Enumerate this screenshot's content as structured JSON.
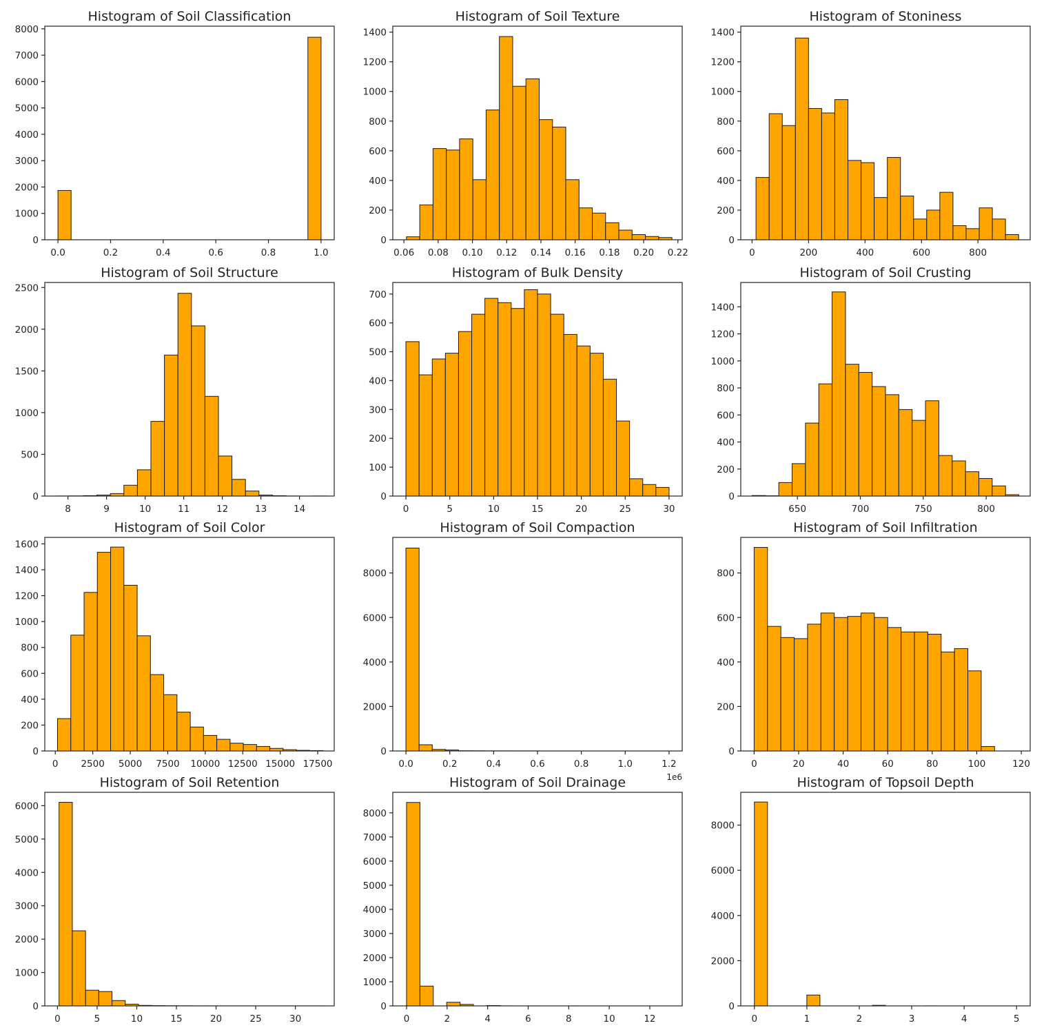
{
  "style": {
    "bar_color": "#FFA500",
    "edge_color": "#1a1a1a",
    "axis_color": "#222222"
  },
  "chart_data": [
    {
      "type": "bar",
      "title": "Histogram of Soil Classification",
      "xlabel": "",
      "ylabel": "",
      "xlim": [
        -0.05,
        1.05
      ],
      "ylim": [
        0,
        8100
      ],
      "xticks": [
        0.0,
        0.2,
        0.4,
        0.6,
        0.8,
        1.0
      ],
      "xtick_labels": [
        "0.0",
        "0.2",
        "0.4",
        "0.6",
        "0.8",
        "1.0"
      ],
      "yticks": [
        0,
        1000,
        2000,
        3000,
        4000,
        5000,
        6000,
        7000,
        8000
      ],
      "ytick_labels": [
        "0",
        "1000",
        "2000",
        "3000",
        "4000",
        "5000",
        "6000",
        "7000",
        "8000"
      ],
      "bins": {
        "start": 0,
        "width": 0.05
      },
      "counts": [
        1870,
        0,
        0,
        0,
        0,
        0,
        0,
        0,
        0,
        0,
        0,
        0,
        0,
        0,
        0,
        0,
        0,
        0,
        0,
        7680
      ]
    },
    {
      "type": "bar",
      "title": "Histogram of Soil Texture",
      "xlabel": "",
      "ylabel": "",
      "xlim": [
        0.0535,
        0.2225
      ],
      "ylim": [
        0,
        1440
      ],
      "xticks": [
        0.06,
        0.08,
        0.1,
        0.12,
        0.14,
        0.16,
        0.18,
        0.2,
        0.22
      ],
      "xtick_labels": [
        "0.06",
        "0.08",
        "0.10",
        "0.12",
        "0.14",
        "0.16",
        "0.18",
        "0.20",
        "0.22"
      ],
      "yticks": [
        0,
        200,
        400,
        600,
        800,
        1000,
        1200,
        1400
      ],
      "ytick_labels": [
        "0",
        "200",
        "400",
        "600",
        "800",
        "1000",
        "1200",
        "1400"
      ],
      "bins": {
        "start": 0.0615,
        "width": 0.00775
      },
      "counts": [
        20,
        235,
        615,
        605,
        680,
        405,
        875,
        1370,
        1035,
        1085,
        810,
        760,
        405,
        215,
        180,
        115,
        65,
        35,
        22,
        15
      ]
    },
    {
      "type": "bar",
      "title": "Histogram of Stoniness",
      "xlabel": "",
      "ylabel": "",
      "xlim": [
        -40,
        985
      ],
      "ylim": [
        0,
        1440
      ],
      "xticks": [
        0,
        200,
        400,
        600,
        800
      ],
      "xtick_labels": [
        "0",
        "200",
        "400",
        "600",
        "800"
      ],
      "yticks": [
        0,
        200,
        400,
        600,
        800,
        1000,
        1200,
        1400
      ],
      "ytick_labels": [
        "0",
        "200",
        "400",
        "600",
        "800",
        "1000",
        "1200",
        "1400"
      ],
      "bins": {
        "start": 14,
        "width": 46.5
      },
      "counts": [
        420,
        850,
        770,
        1360,
        885,
        855,
        945,
        535,
        520,
        285,
        555,
        295,
        140,
        200,
        320,
        95,
        75,
        215,
        140,
        35
      ]
    },
    {
      "type": "bar",
      "title": "Histogram of Soil Structure",
      "xlabel": "",
      "ylabel": "",
      "xlim": [
        7.4,
        14.9
      ],
      "ylim": [
        0,
        2560
      ],
      "xticks": [
        8,
        9,
        10,
        11,
        12,
        13,
        14
      ],
      "xtick_labels": [
        "8",
        "9",
        "10",
        "11",
        "12",
        "13",
        "14"
      ],
      "yticks": [
        0,
        500,
        1000,
        1500,
        2000,
        2500
      ],
      "ytick_labels": [
        "0",
        "500",
        "1000",
        "1500",
        "2000",
        "2500"
      ],
      "bins": {
        "start": 7.7,
        "width": 0.35
      },
      "counts": [
        1,
        2,
        5,
        12,
        30,
        130,
        315,
        895,
        1690,
        2430,
        2040,
        1195,
        480,
        200,
        60,
        12,
        4,
        1,
        0,
        1
      ]
    },
    {
      "type": "bar",
      "title": "Histogram of Bulk Density",
      "xlabel": "",
      "ylabel": "",
      "xlim": [
        -1.5,
        31.5
      ],
      "ylim": [
        0,
        740
      ],
      "xticks": [
        0,
        5,
        10,
        15,
        20,
        25,
        30
      ],
      "xtick_labels": [
        "0",
        "5",
        "10",
        "15",
        "20",
        "25",
        "30"
      ],
      "yticks": [
        0,
        100,
        200,
        300,
        400,
        500,
        600,
        700
      ],
      "ytick_labels": [
        "0",
        "100",
        "200",
        "300",
        "400",
        "500",
        "600",
        "700"
      ],
      "bins": {
        "start": 0,
        "width": 1.5
      },
      "counts": [
        535,
        420,
        475,
        495,
        570,
        630,
        685,
        670,
        650,
        715,
        700,
        630,
        560,
        520,
        495,
        405,
        260,
        60,
        40,
        30
      ]
    },
    {
      "type": "bar",
      "title": "Histogram of Soil Crusting",
      "xlabel": "",
      "ylabel": "",
      "xlim": [
        605,
        835
      ],
      "ylim": [
        0,
        1580
      ],
      "xticks": [
        650,
        700,
        750,
        800
      ],
      "xtick_labels": [
        "650",
        "700",
        "750",
        "800"
      ],
      "yticks": [
        0,
        200,
        400,
        600,
        800,
        1000,
        1200,
        1400
      ],
      "ytick_labels": [
        "0",
        "200",
        "400",
        "600",
        "800",
        "1000",
        "1200",
        "1400"
      ],
      "bins": {
        "start": 614,
        "width": 10.6
      },
      "counts": [
        4,
        2,
        100,
        240,
        540,
        830,
        1510,
        975,
        915,
        810,
        750,
        640,
        560,
        705,
        300,
        260,
        180,
        130,
        75,
        10
      ]
    },
    {
      "type": "bar",
      "title": "Histogram of Soil Color",
      "xlabel": "",
      "ylabel": "",
      "xlim": [
        -700,
        18600
      ],
      "ylim": [
        0,
        1650
      ],
      "xticks": [
        0,
        2500,
        5000,
        7500,
        10000,
        12500,
        15000,
        17500
      ],
      "xtick_labels": [
        "0",
        "2500",
        "5000",
        "7500",
        "10000",
        "12500",
        "15000",
        "17500"
      ],
      "yticks": [
        0,
        200,
        400,
        600,
        800,
        1000,
        1200,
        1400,
        1600
      ],
      "ytick_labels": [
        "0",
        "200",
        "400",
        "600",
        "800",
        "1000",
        "1200",
        "1400",
        "1600"
      ],
      "bins": {
        "start": 150,
        "width": 885
      },
      "counts": [
        250,
        895,
        1225,
        1535,
        1575,
        1280,
        890,
        590,
        435,
        300,
        185,
        120,
        90,
        60,
        50,
        35,
        20,
        10,
        5,
        3
      ]
    },
    {
      "type": "bar",
      "title": "Histogram of Soil Compaction",
      "xlabel": "",
      "ylabel": "",
      "x_offset_label": "1e6",
      "xlim": [
        -60000,
        1260000
      ],
      "ylim": [
        0,
        9600
      ],
      "xticks": [
        0,
        200000,
        400000,
        600000,
        800000,
        1000000,
        1200000
      ],
      "xtick_labels": [
        "0.0",
        "0.2",
        "0.4",
        "0.6",
        "0.8",
        "1.0",
        "1.2"
      ],
      "yticks": [
        0,
        2000,
        4000,
        6000,
        8000
      ],
      "ytick_labels": [
        "0",
        "2000",
        "4000",
        "6000",
        "8000"
      ],
      "bins": {
        "start": 0,
        "width": 60000
      },
      "counts": [
        9120,
        280,
        70,
        45,
        10,
        8,
        5,
        4,
        3,
        3,
        2,
        2,
        2,
        1,
        1,
        1,
        1,
        1,
        1,
        1
      ]
    },
    {
      "type": "bar",
      "title": "Histogram of Soil Infiltration",
      "xlabel": "",
      "ylabel": "",
      "xlim": [
        -6,
        124
      ],
      "ylim": [
        0,
        960
      ],
      "xticks": [
        0,
        20,
        40,
        60,
        80,
        100,
        120
      ],
      "xtick_labels": [
        "0",
        "20",
        "40",
        "60",
        "80",
        "100",
        "120"
      ],
      "yticks": [
        0,
        200,
        400,
        600,
        800
      ],
      "ytick_labels": [
        "0",
        "200",
        "400",
        "600",
        "800"
      ],
      "bins": {
        "start": 0,
        "width": 6
      },
      "counts": [
        915,
        560,
        510,
        505,
        570,
        620,
        600,
        605,
        620,
        600,
        555,
        535,
        535,
        525,
        445,
        460,
        360,
        20,
        0,
        0
      ]
    },
    {
      "type": "bar",
      "title": "Histogram of Soil Retention",
      "xlabel": "",
      "ylabel": "",
      "xlim": [
        -1.6,
        34.9
      ],
      "ylim": [
        0,
        6400
      ],
      "xticks": [
        0,
        5,
        10,
        15,
        20,
        25,
        30
      ],
      "xtick_labels": [
        "0",
        "5",
        "10",
        "15",
        "20",
        "25",
        "30"
      ],
      "yticks": [
        0,
        1000,
        2000,
        3000,
        4000,
        5000,
        6000
      ],
      "ytick_labels": [
        "0",
        "1000",
        "2000",
        "3000",
        "4000",
        "5000",
        "6000"
      ],
      "bins": {
        "start": 0.2,
        "width": 1.67
      },
      "counts": [
        6100,
        2250,
        470,
        430,
        160,
        50,
        15,
        8,
        5,
        3,
        2,
        2,
        1,
        1,
        1,
        1,
        1,
        1,
        1,
        1
      ]
    },
    {
      "type": "bar",
      "title": "Histogram of Soil Drainage",
      "xlabel": "",
      "ylabel": "",
      "xlim": [
        -0.68,
        13.6
      ],
      "ylim": [
        0,
        8850
      ],
      "xticks": [
        0,
        2,
        4,
        6,
        8,
        10,
        12
      ],
      "xtick_labels": [
        "0",
        "2",
        "4",
        "6",
        "8",
        "10",
        "12"
      ],
      "yticks": [
        0,
        1000,
        2000,
        3000,
        4000,
        5000,
        6000,
        7000,
        8000
      ],
      "ytick_labels": [
        "0",
        "1000",
        "2000",
        "3000",
        "4000",
        "5000",
        "6000",
        "7000",
        "8000"
      ],
      "bins": {
        "start": 0,
        "width": 0.66
      },
      "counts": [
        8430,
        820,
        0,
        150,
        60,
        0,
        15,
        2,
        0,
        1,
        0,
        0,
        1,
        0,
        0,
        0,
        0,
        0,
        0,
        0
      ]
    },
    {
      "type": "bar",
      "title": "Histogram of Topsoil Depth",
      "xlabel": "",
      "ylabel": "",
      "xlim": [
        -0.26,
        5.26
      ],
      "ylim": [
        0,
        9450
      ],
      "xticks": [
        0,
        1,
        2,
        3,
        4,
        5
      ],
      "xtick_labels": [
        "0",
        "1",
        "2",
        "3",
        "4",
        "5"
      ],
      "yticks": [
        0,
        2000,
        4000,
        6000,
        8000
      ],
      "ytick_labels": [
        "0",
        "2000",
        "4000",
        "6000",
        "8000"
      ],
      "bins": {
        "start": 0,
        "width": 0.25
      },
      "counts": [
        9020,
        0,
        0,
        0,
        480,
        0,
        0,
        0,
        0,
        25,
        0,
        0,
        0,
        2,
        0,
        0,
        0,
        0,
        0,
        1
      ]
    }
  ]
}
